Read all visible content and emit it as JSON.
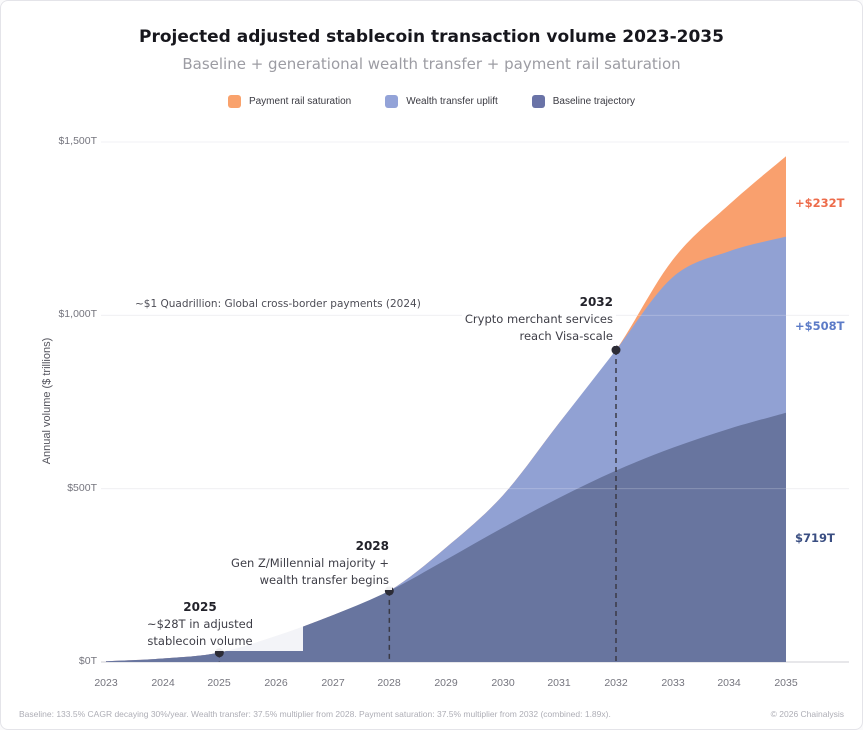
{
  "page": {
    "title": "Projected adjusted stablecoin transaction volume 2023-2035",
    "subtitle": "Baseline + generational wealth transfer + payment rail saturation",
    "footer_left": "Baseline: 133.5% CAGR decaying 30%/year. Wealth transfer: 37.5% multiplier from 2028. Payment saturation: 37.5% multiplier from 2032 (combined: 1.89x).",
    "footer_right": "© 2026 Chainalysis"
  },
  "chart_data": {
    "type": "area",
    "stacked": true,
    "title": "Projected adjusted stablecoin transaction volume 2023-2035",
    "subtitle": "Baseline + generational wealth transfer + payment rail saturation",
    "ylabel": "Annual volume ($ trillions)",
    "ylim": [
      0,
      1500
    ],
    "grid": "horizontal",
    "legend_position": "top",
    "x": [
      2023,
      2024,
      2025,
      2026,
      2027,
      2028,
      2029,
      2030,
      2031,
      2032,
      2033,
      2034,
      2035
    ],
    "x_labels": [
      "2023",
      "2024",
      "2025",
      "2026",
      "2027",
      "2028",
      "2029",
      "2030",
      "2031",
      "2032",
      "2033",
      "2034",
      "2035"
    ],
    "y_tick_values": [
      0,
      500,
      1000,
      1500
    ],
    "y_tick_labels": [
      "$0T",
      "$500T",
      "$1,000T",
      "$1,500T"
    ],
    "series": [
      {
        "name": "Baseline trajectory",
        "color": "#68759F",
        "values": [
          2,
          10,
          27,
          75,
          135,
          205,
          295,
          387,
          474,
          552,
          618,
          673,
          719
        ]
      },
      {
        "name": "Wealth transfer uplift",
        "color": "#91A1D3",
        "values": [
          0,
          0,
          0,
          0,
          0,
          0,
          35,
          93,
          216,
          348,
          492,
          512,
          508
        ]
      },
      {
        "name": "Payment rail saturation",
        "color": "#F9A06E",
        "values": [
          0,
          0,
          0,
          0,
          0,
          0,
          0,
          0,
          0,
          0,
          50,
          135,
          232
        ]
      }
    ],
    "legend": [
      {
        "label": "Payment rail saturation",
        "color": "#F9A26C"
      },
      {
        "label": "Wealth transfer uplift",
        "color": "#93A3D8"
      },
      {
        "label": "Baseline trajectory",
        "color": "#6A73A7"
      }
    ],
    "annotations": [
      {
        "year": 2025,
        "anchor_value": 27,
        "title": "2025",
        "line1": "~$28T in adjusted",
        "line2": "stablecoin volume"
      },
      {
        "year": 2028,
        "anchor_value": 205,
        "title": "2028",
        "line1": "Gen Z/Millennial majority +",
        "line2": "wealth transfer begins"
      },
      {
        "year": 2032,
        "anchor_value": 900,
        "title": "2032",
        "line1": "Crypto merchant services",
        "line2": "reach Visa-scale"
      }
    ],
    "reference_note": {
      "text": "~$1 Quadrillion: Global cross-border payments (2024)",
      "value": 1000
    },
    "end_labels": [
      {
        "text": "+$232T",
        "color": "#ED6C4B"
      },
      {
        "text": "+$508T",
        "color": "#5C7BC7"
      },
      {
        "text": "$719T",
        "color": "#3A4E82"
      }
    ]
  }
}
